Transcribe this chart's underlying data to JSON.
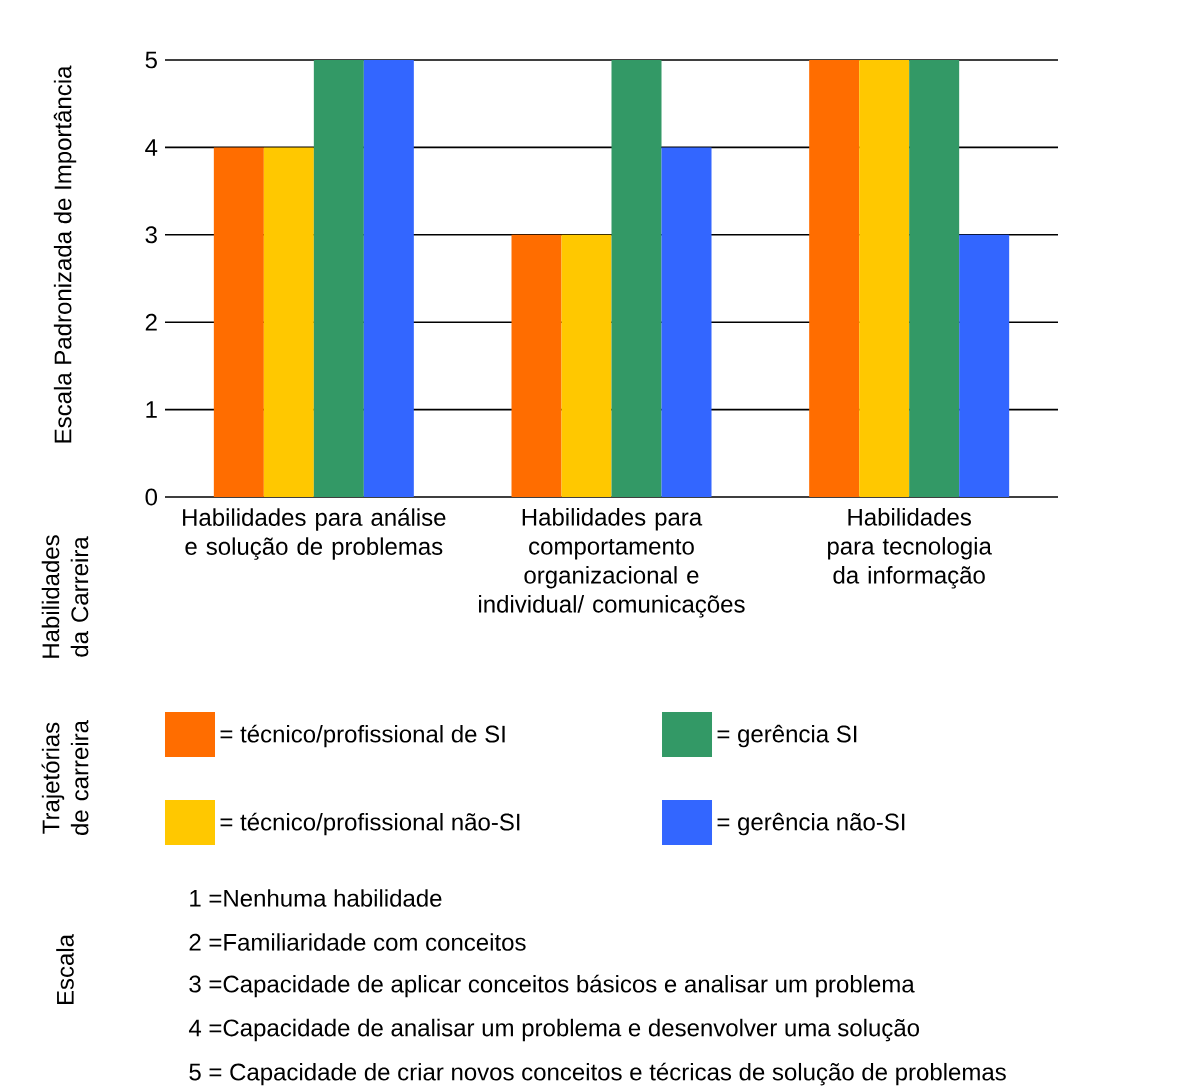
{
  "chart_data": {
    "type": "bar",
    "ylabel": "Escala Padronizada de Importância",
    "legend_title": "Trajetórias de carreira",
    "categories": [
      "Habilidades para análise e solução de problemas",
      "Habilidades para comportamento organizacional e individual/ comunicações",
      "Habilidades para tecnologia da informação"
    ],
    "series": [
      {
        "name": "= técnico/profissional de SI",
        "color": "#ff6d00",
        "values": [
          4,
          3,
          5
        ]
      },
      {
        "name": "= técnico/profissional não-SI",
        "color": "#ffc800",
        "values": [
          4,
          3,
          5
        ]
      },
      {
        "name": "= gerência SI",
        "color": "#339966",
        "values": [
          5,
          5,
          5
        ]
      },
      {
        "name": "= gerência não-SI",
        "color": "#3366ff",
        "values": [
          5,
          4,
          3
        ]
      }
    ],
    "ylim": [
      0,
      5
    ],
    "yticks": [
      0,
      1,
      2,
      3,
      4,
      5
    ],
    "grid": "y",
    "legend": "bottom",
    "annotations": [
      "Habilidades da Carreira",
      "Escala",
      "1 =Nenhuma habilidade",
      "2 =Familiaridade com conceitos",
      "3 =Capacidade de aplicar conceitos básicos e analisar um problema",
      "4 =Capacidade de analisar um problema e desenvolver uma solução",
      "5 = Capacidade de criar novos conceitos e técricas de solução de problemas"
    ]
  }
}
